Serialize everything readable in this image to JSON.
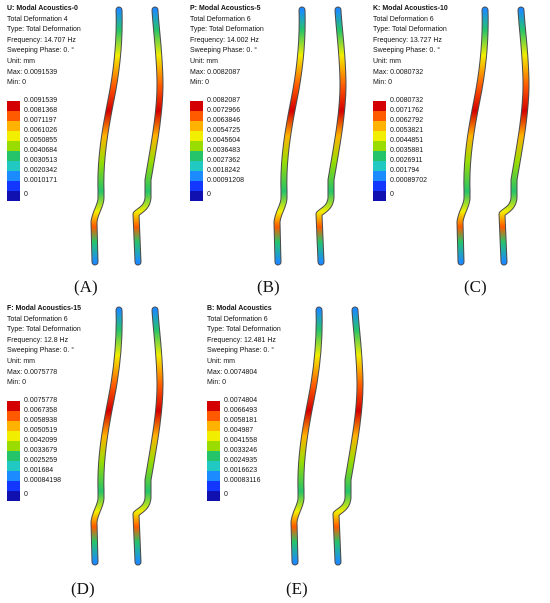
{
  "palette": [
    "#d40000",
    "#ff5a00",
    "#ffb300",
    "#f2ee00",
    "#9bdc00",
    "#25c46a",
    "#22c9c3",
    "#1b8bff",
    "#1437ff",
    "#1010b0"
  ],
  "panels": [
    {
      "title": "U: Modal Acoustics-0",
      "type_line": "Total Deformation 4",
      "type_label": "Type: Total Deformation",
      "frequency": "Frequency: 14.707 Hz",
      "phase": "Sweeping Phase: 0. °",
      "unit": "Unit: mm",
      "max": "Max: 0.0091539",
      "min": "Min: 0",
      "legend": [
        "0.0091539",
        "0.0081368",
        "0.0071197",
        "0.0061026",
        "0.0050855",
        "0.0040684",
        "0.0030513",
        "0.0020342",
        "0.0010171",
        "0"
      ],
      "caption": "(A)"
    },
    {
      "title": "P: Modal Acoustics-5",
      "type_line": "Total Deformation 6",
      "type_label": "Type: Total Deformation",
      "frequency": "Frequency: 14.002 Hz",
      "phase": "Sweeping Phase: 0. °",
      "unit": "Unit: mm",
      "max": "Max: 0.0082087",
      "min": "Min: 0",
      "legend": [
        "0.0082087",
        "0.0072966",
        "0.0063846",
        "0.0054725",
        "0.0045604",
        "0.0036483",
        "0.0027362",
        "0.0018242",
        "0.00091208",
        "0"
      ],
      "caption": "(B)"
    },
    {
      "title": "K: Modal Acoustics-10",
      "type_line": "Total Deformation 6",
      "type_label": "Type: Total Deformation",
      "frequency": "Frequency: 13.727 Hz",
      "phase": "Sweeping Phase: 0. °",
      "unit": "Unit: mm",
      "max": "Max: 0.0080732",
      "min": "Min: 0",
      "legend": [
        "0.0080732",
        "0.0071762",
        "0.0062792",
        "0.0053821",
        "0.0044851",
        "0.0035881",
        "0.0026911",
        "0.001794",
        "0.00089702",
        "0"
      ],
      "caption": "(C)"
    },
    {
      "title": "F: Modal Acoustics-15",
      "type_line": "Total Deformation 6",
      "type_label": "Type: Total Deformation",
      "frequency": "Frequency: 12.8 Hz",
      "phase": "Sweeping Phase: 0. °",
      "unit": "Unit: mm",
      "max": "Max: 0.0075778",
      "min": "Min: 0",
      "legend": [
        "0.0075778",
        "0.0067358",
        "0.0058938",
        "0.0050519",
        "0.0042099",
        "0.0033679",
        "0.0025259",
        "0.001684",
        "0.00084198",
        "0"
      ],
      "caption": "(D)"
    },
    {
      "title": "B: Modal Acoustics",
      "type_line": "Total Deformation 6",
      "type_label": "Type: Total Deformation",
      "frequency": "Frequency: 12.481 Hz",
      "phase": "Sweeping Phase: 0. °",
      "unit": "Unit: mm",
      "max": "Max: 0.0074804",
      "min": "Min: 0",
      "legend": [
        "0.0074804",
        "0.0066493",
        "0.0058181",
        "0.004987",
        "0.0041558",
        "0.0033246",
        "0.0024935",
        "0.0016623",
        "0.00083116",
        "0"
      ],
      "caption": "(E)"
    }
  ]
}
